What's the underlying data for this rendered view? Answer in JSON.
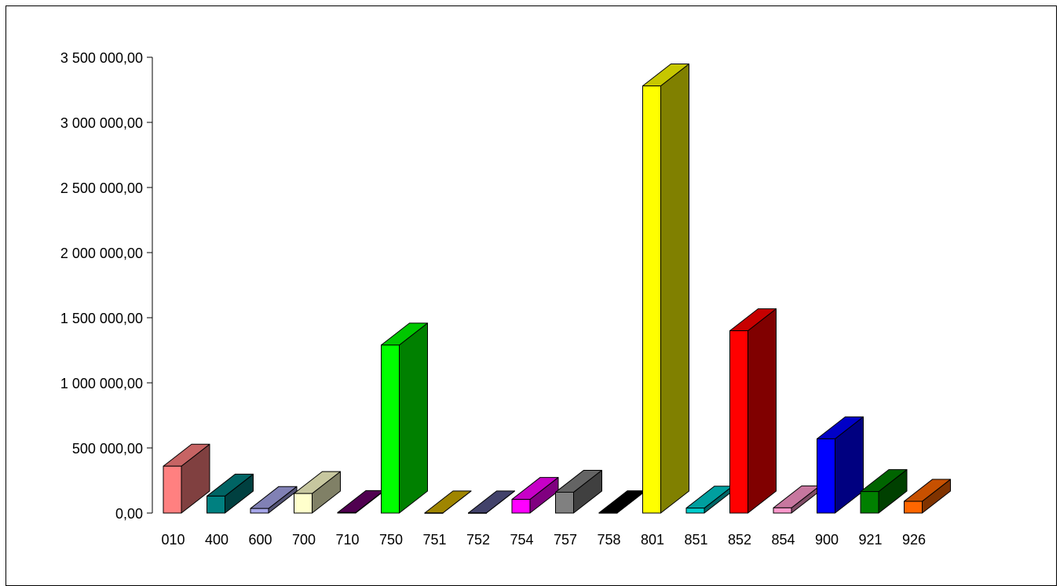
{
  "chart_data": {
    "type": "bar",
    "title": "",
    "xlabel": "",
    "ylabel": "",
    "ylim": [
      0,
      3500000
    ],
    "yticks": [
      {
        "value": 0,
        "label": "0,00"
      },
      {
        "value": 500000,
        "label": "500 000,00"
      },
      {
        "value": 1000000,
        "label": "1 000 000,00"
      },
      {
        "value": 1500000,
        "label": "1 500 000,00"
      },
      {
        "value": 2000000,
        "label": "2 000 000,00"
      },
      {
        "value": 2500000,
        "label": "2 500 000,00"
      },
      {
        "value": 3000000,
        "label": "3 000 000,00"
      },
      {
        "value": 3500000,
        "label": "3 500 000,00"
      }
    ],
    "grid": false,
    "legend": "none",
    "style": "3d",
    "categories": [
      "010",
      "400",
      "600",
      "700",
      "710",
      "750",
      "751",
      "752",
      "754",
      "757",
      "758",
      "801",
      "851",
      "852",
      "854",
      "900",
      "921",
      "926"
    ],
    "values": [
      360000,
      130000,
      35000,
      150000,
      4000,
      1290000,
      1000,
      1000,
      105000,
      160000,
      2000,
      3280000,
      38000,
      1400000,
      40000,
      570000,
      165000,
      90000
    ],
    "colors": [
      "#ff8080",
      "#008080",
      "#a6a6e8",
      "#ffffcc",
      "#660066",
      "#00ff00",
      "#ccaa00",
      "#555588",
      "#ff00ff",
      "#808080",
      "#000000",
      "#ffff00",
      "#00cccc",
      "#ff0000",
      "#ff99cc",
      "#0000ff",
      "#008000",
      "#ff6600"
    ]
  }
}
